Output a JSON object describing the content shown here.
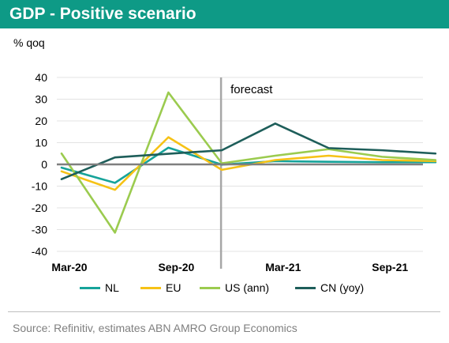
{
  "header": {
    "title": "GDP - Positive scenario"
  },
  "unit_label": "% qoq",
  "source": "Source: Refinitiv, estimates ABN AMRO Group Economics",
  "colors": {
    "title_bar": "#0e9a86",
    "NL": "#16a39a",
    "EU": "#f6c216",
    "US (ann)": "#9bcb4f",
    "CN (yoy)": "#1e5e5a",
    "forecast_line": "#a6a6a6",
    "zero_line": "#7f7f7f",
    "grid": "#e3e3e3"
  },
  "chart_data": {
    "type": "line",
    "title": "GDP - Positive scenario",
    "ylabel": "% qoq",
    "xlabel": "",
    "ylim": [
      -40,
      40
    ],
    "yticks": [
      40,
      30,
      20,
      10,
      0,
      -10,
      -20,
      -30,
      -40
    ],
    "x": [
      "Mar-20",
      "Jun-20",
      "Sep-20",
      "Dec-20",
      "Mar-21",
      "Jun-21",
      "Sep-21",
      "Dec-21"
    ],
    "x_tick_labels": [
      "Mar-20",
      "Sep-20",
      "Mar-21",
      "Sep-21"
    ],
    "grid": true,
    "forecast_label": "forecast",
    "forecast_start": "Dec-20",
    "legend_position": "bottom",
    "series": [
      {
        "name": "NL",
        "values": [
          -1.5,
          -8.5,
          7.7,
          -0.1,
          1.5,
          1.2,
          1.0,
          1.0
        ]
      },
      {
        "name": "EU",
        "values": [
          -3.2,
          -11.7,
          12.5,
          -2.5,
          2.0,
          4.0,
          2.0,
          1.5
        ]
      },
      {
        "name": "US (ann)",
        "values": [
          5.0,
          -31.4,
          33.1,
          0.5,
          4.0,
          7.0,
          3.5,
          2.0
        ]
      },
      {
        "name": "CN (yoy)",
        "values": [
          -6.8,
          3.2,
          4.9,
          6.5,
          18.8,
          7.5,
          6.5,
          5.0
        ]
      }
    ]
  }
}
